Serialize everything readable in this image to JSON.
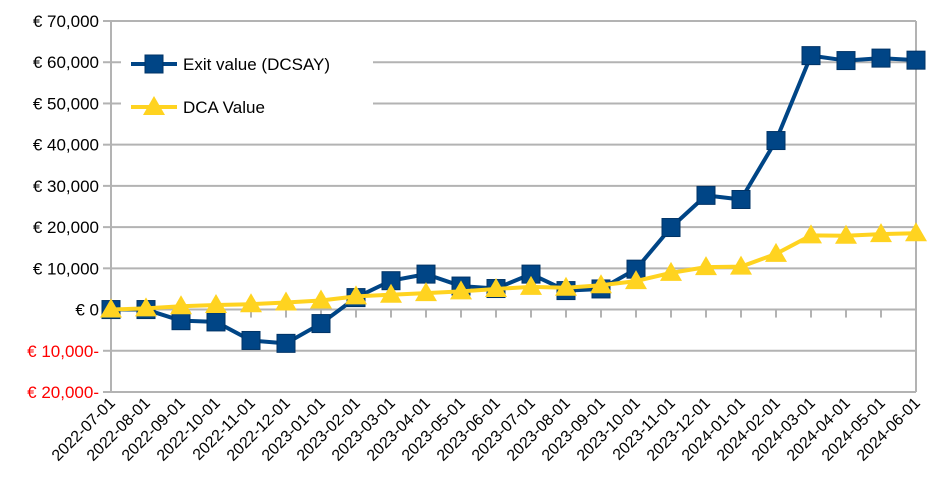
{
  "chart_data": {
    "type": "line",
    "title": "",
    "xlabel": "",
    "ylabel": "",
    "ylim": [
      -20000,
      70000
    ],
    "y_ticks": [
      70000,
      60000,
      50000,
      40000,
      30000,
      20000,
      10000,
      0,
      -10000,
      -20000
    ],
    "y_tick_labels": [
      "€ 70,000",
      "€ 60,000",
      "€ 50,000",
      "€ 40,000",
      "€ 30,000",
      "€ 20,000",
      "€ 10,000",
      "€ 0",
      "€ 10,000-",
      "€ 20,000-"
    ],
    "negative_label_color": "#ff0000",
    "grid": true,
    "legend_position": "top-left",
    "categories": [
      "2022-07-01",
      "2022-08-01",
      "2022-09-01",
      "2022-10-01",
      "2022-11-01",
      "2022-12-01",
      "2023-01-01",
      "2023-02-01",
      "2023-03-01",
      "2023-04-01",
      "2023-05-01",
      "2023-06-01",
      "2023-07-01",
      "2023-08-01",
      "2023-09-01",
      "2023-10-01",
      "2023-11-01",
      "2023-12-01",
      "2024-01-01",
      "2024-02-01",
      "2024-03-01",
      "2024-04-01",
      "2024-05-01",
      "2024-06-01"
    ],
    "series": [
      {
        "name": "Exit value (DCSAY)",
        "color": "#004586",
        "marker": "square",
        "values": [
          0,
          0,
          -2700,
          -3000,
          -7500,
          -8200,
          -3400,
          2900,
          7000,
          8600,
          5700,
          5100,
          8600,
          4600,
          5000,
          9800,
          19900,
          27700,
          26700,
          41000,
          61600,
          60400,
          61000,
          60500
        ]
      },
      {
        "name": "DCA Value",
        "color": "#ffd320",
        "marker": "triangle",
        "values": [
          0,
          300,
          800,
          1100,
          1300,
          1700,
          2200,
          3200,
          3600,
          4000,
          4400,
          5000,
          5500,
          5300,
          5900,
          6900,
          8900,
          10300,
          10400,
          13500,
          18000,
          17900,
          18300,
          18500
        ]
      }
    ]
  }
}
